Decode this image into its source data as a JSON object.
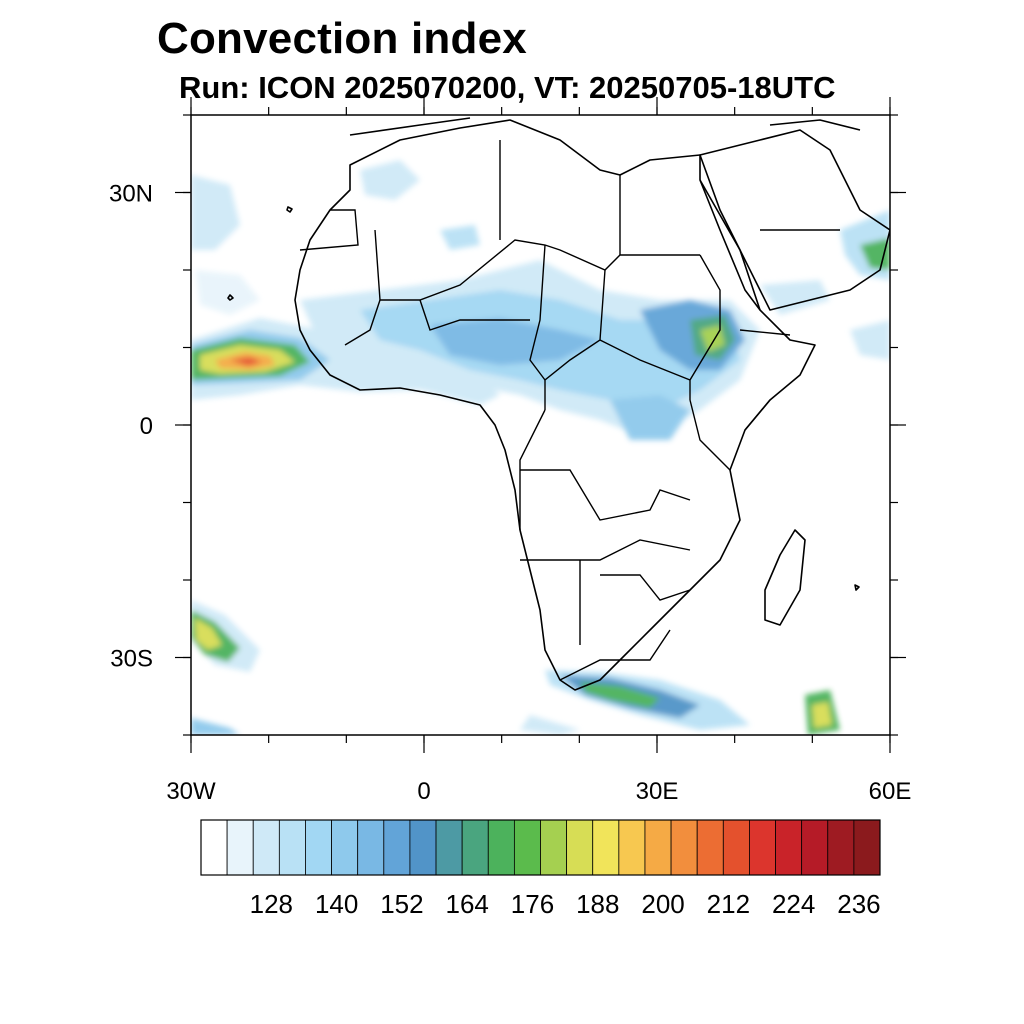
{
  "title": "Convection index",
  "subtitle": "Run: ICON 2025070200,  VT: 20250705-18UTC",
  "map": {
    "region": "Africa",
    "lon_range": [
      -30,
      60
    ],
    "lat_range": [
      -40,
      40
    ],
    "lat_ticks": [
      {
        "value": 30,
        "label": "30N"
      },
      {
        "value": 0,
        "label": "0"
      },
      {
        "value": -30,
        "label": "30S"
      }
    ],
    "lon_ticks": [
      {
        "value": -30,
        "label": "30W"
      },
      {
        "value": 0,
        "label": "0"
      },
      {
        "value": 30,
        "label": "30E"
      },
      {
        "value": 60,
        "label": "60E"
      }
    ]
  },
  "colorbar": {
    "colors": [
      "#ffffff",
      "#e8f4fb",
      "#cfe9f7",
      "#b9e1f5",
      "#a2d7f3",
      "#8ec9ec",
      "#79b8e4",
      "#62a4d8",
      "#5194c8",
      "#4d9aa4",
      "#4aa57f",
      "#4cb25c",
      "#5bbb4c",
      "#a5d050",
      "#d7dd55",
      "#f1e45a",
      "#f7c850",
      "#f5aa45",
      "#f28e3d",
      "#ec6d33",
      "#e4512d",
      "#dc352d",
      "#c92329",
      "#b51b27",
      "#9e1b22",
      "#8b1a1d"
    ],
    "tick_labels": [
      "128",
      "140",
      "152",
      "164",
      "176",
      "188",
      "200",
      "212",
      "224",
      "236"
    ]
  }
}
